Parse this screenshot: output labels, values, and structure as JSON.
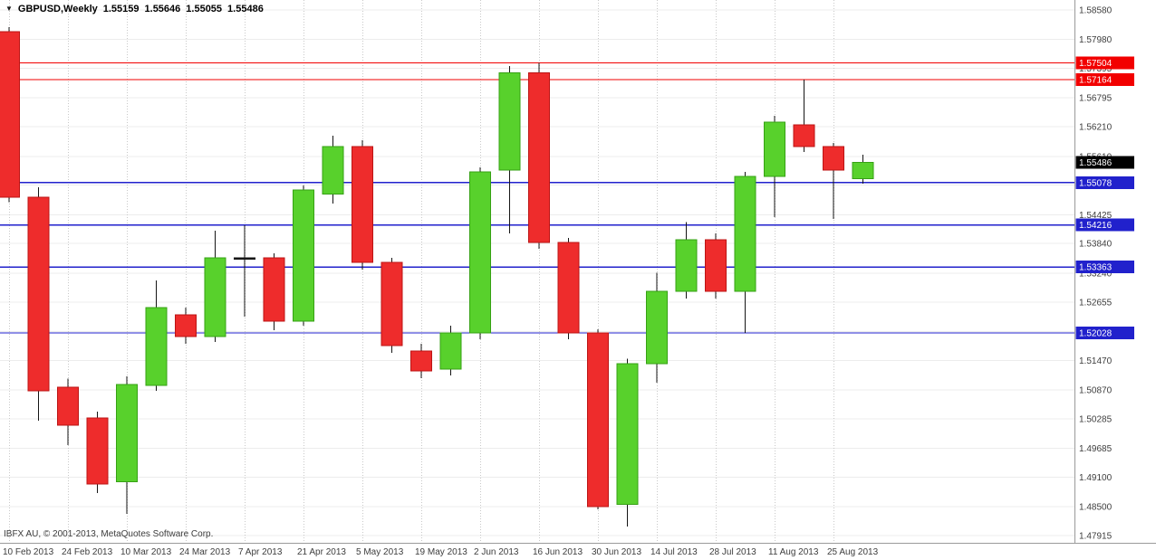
{
  "title": {
    "symbol": "GBPUSD,Weekly",
    "open": "1.55159",
    "high": "1.55646",
    "low": "1.55055",
    "close": "1.55486"
  },
  "icons": {
    "chart_dropdown": "▼"
  },
  "copyright": "IBFX AU, © 2001-2013, MetaQuotes Software Corp.",
  "chart_data": {
    "type": "candlestick",
    "title": "GBPUSD,Weekly",
    "ylim": [
      1.47915,
      1.5858
    ],
    "grid": true,
    "x_labels": [
      "10 Feb 2013",
      "24 Feb 2013",
      "10 Mar 2013",
      "24 Mar 2013",
      "7 Apr 2013",
      "21 Apr 2013",
      "5 May 2013",
      "19 May 2013",
      "2 Jun 2013",
      "16 Jun 2013",
      "30 Jun 2013",
      "14 Jul 2013",
      "28 Jul 2013",
      "11 Aug 2013",
      "25 Aug 2013"
    ],
    "y_axis_labels": [
      "1.58580",
      "1.57980",
      "1.57395",
      "1.56795",
      "1.56210",
      "1.55610",
      "1.55025",
      "1.54425",
      "1.53840",
      "1.53240",
      "1.52655",
      "1.52055",
      "1.51470",
      "1.50870",
      "1.50285",
      "1.49685",
      "1.49100",
      "1.48500",
      "1.47915"
    ],
    "candles": [
      {
        "o": 1.5814,
        "h": 1.5823,
        "l": 1.5468,
        "c": 1.5478
      },
      {
        "o": 1.5478,
        "h": 1.5498,
        "l": 1.5025,
        "c": 1.5085
      },
      {
        "o": 1.5093,
        "h": 1.511,
        "l": 1.4975,
        "c": 1.5015
      },
      {
        "o": 1.503,
        "h": 1.5043,
        "l": 1.4878,
        "c": 1.4896
      },
      {
        "o": 1.4901,
        "h": 1.5115,
        "l": 1.4836,
        "c": 1.5098
      },
      {
        "o": 1.5096,
        "h": 1.5309,
        "l": 1.5085,
        "c": 1.5254
      },
      {
        "o": 1.5239,
        "h": 1.5254,
        "l": 1.5181,
        "c": 1.5195
      },
      {
        "o": 1.5195,
        "h": 1.541,
        "l": 1.5184,
        "c": 1.5355
      },
      {
        "o": 1.5355,
        "h": 1.5421,
        "l": 1.5236,
        "c": 1.5355
      },
      {
        "o": 1.5355,
        "h": 1.5364,
        "l": 1.5208,
        "c": 1.5227
      },
      {
        "o": 1.5227,
        "h": 1.5502,
        "l": 1.5217,
        "c": 1.5493
      },
      {
        "o": 1.5484,
        "h": 1.5603,
        "l": 1.5465,
        "c": 1.5581
      },
      {
        "o": 1.5581,
        "h": 1.5594,
        "l": 1.5331,
        "c": 1.5346
      },
      {
        "o": 1.5346,
        "h": 1.5355,
        "l": 1.5162,
        "c": 1.5177
      },
      {
        "o": 1.5166,
        "h": 1.5181,
        "l": 1.5111,
        "c": 1.5126
      },
      {
        "o": 1.5129,
        "h": 1.5217,
        "l": 1.5116,
        "c": 1.5203
      },
      {
        "o": 1.5203,
        "h": 1.5539,
        "l": 1.519,
        "c": 1.5529
      },
      {
        "o": 1.5533,
        "h": 1.5744,
        "l": 1.5405,
        "c": 1.573
      },
      {
        "o": 1.573,
        "h": 1.5751,
        "l": 1.5373,
        "c": 1.5386
      },
      {
        "o": 1.5386,
        "h": 1.5395,
        "l": 1.519,
        "c": 1.5203
      },
      {
        "o": 1.5203,
        "h": 1.521,
        "l": 1.4845,
        "c": 1.485
      },
      {
        "o": 1.4855,
        "h": 1.515,
        "l": 1.481,
        "c": 1.514
      },
      {
        "o": 1.514,
        "h": 1.5325,
        "l": 1.5102,
        "c": 1.5287
      },
      {
        "o": 1.5287,
        "h": 1.5428,
        "l": 1.5272,
        "c": 1.5392
      },
      {
        "o": 1.5392,
        "h": 1.5405,
        "l": 1.5272,
        "c": 1.5287
      },
      {
        "o": 1.5287,
        "h": 1.5529,
        "l": 1.5203,
        "c": 1.552
      },
      {
        "o": 1.552,
        "h": 1.5643,
        "l": 1.5438,
        "c": 1.563
      },
      {
        "o": 1.5625,
        "h": 1.5717,
        "l": 1.557,
        "c": 1.5581
      },
      {
        "o": 1.5581,
        "h": 1.5588,
        "l": 1.5434,
        "c": 1.5533
      },
      {
        "o": 1.55159,
        "h": 1.55646,
        "l": 1.55055,
        "c": 1.55486
      }
    ],
    "levels": [
      {
        "label": "1.57504",
        "price": 1.57504,
        "color": "#f20000",
        "line": true,
        "current": false
      },
      {
        "label": "1.57164",
        "price": 1.57164,
        "color": "#f20000",
        "line": true,
        "current": false
      },
      {
        "label": "1.55486",
        "price": 1.55486,
        "color": "#000000",
        "line": false,
        "current": true
      },
      {
        "label": "1.55078",
        "price": 1.55078,
        "color": "#2121cc",
        "line": true,
        "current": false
      },
      {
        "label": "1.54216",
        "price": 1.54216,
        "color": "#2121cc",
        "line": true,
        "current": false
      },
      {
        "label": "1.53363",
        "price": 1.53363,
        "color": "#2121cc",
        "line": true,
        "current": false
      },
      {
        "label": "1.52028",
        "price": 1.52028,
        "color": "#2121cc",
        "line": true,
        "current": false
      }
    ],
    "colors": {
      "bull": "#58d12c",
      "bull_edge": "#36a114",
      "bear": "#ee2c2c",
      "bear_edge": "#bc1414",
      "wick": "#151515",
      "grid_h": "#ececec",
      "grid_v": "#c9c9c9",
      "axis": "#9a9a9a",
      "axis_text": "#3d3d3d"
    }
  }
}
